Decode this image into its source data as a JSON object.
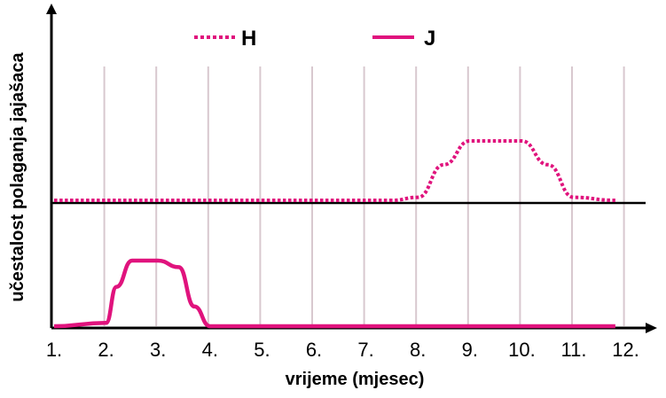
{
  "chart_data": [
    {
      "type": "line",
      "xlabel": "vrijeme (mjesec)",
      "ylabel": "učestalost polaganja jajašaca",
      "categories": [
        "1.",
        "2.",
        "3.",
        "4.",
        "5.",
        "6.",
        "7.",
        "8.",
        "9.",
        "10.",
        "11.",
        "12."
      ],
      "xlim": [
        1,
        12
      ],
      "grid": true,
      "legend": "top-center",
      "series": [
        {
          "name": "H",
          "style": "dotted",
          "color": "#e0137d",
          "x": [
            1,
            7.5,
            8,
            8.5,
            9,
            10,
            10.5,
            11,
            11.8
          ],
          "y": [
            0,
            0,
            0.05,
            0.6,
            1,
            1,
            0.6,
            0.05,
            0
          ]
        },
        {
          "name": "J",
          "style": "solid",
          "color": "#e0137d",
          "x": [
            1,
            2,
            2.2,
            2.5,
            3,
            3.4,
            3.7,
            4,
            11.8
          ],
          "y": [
            0,
            0.05,
            0.6,
            1,
            1,
            0.9,
            0.3,
            0,
            0
          ]
        }
      ]
    }
  ]
}
